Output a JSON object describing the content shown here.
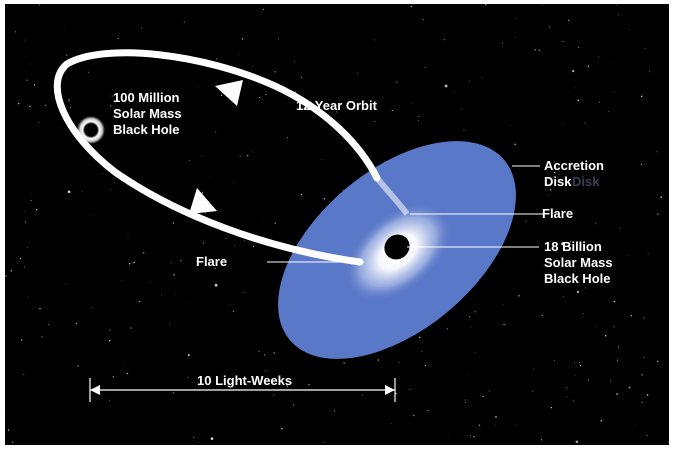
{
  "labels": {
    "small_black_hole": [
      "100 Million",
      "Solar Mass",
      "Black Hole"
    ],
    "orbit": "12-Year Orbit",
    "accretion_disk": [
      "Accretion",
      "Disk"
    ],
    "accretion_disk_ghost": "Disk",
    "flare_upper": "Flare",
    "flare_left": "Flare",
    "big_black_hole": [
      "18 Billion",
      "Solar Mass",
      "Black Hole"
    ],
    "scale": "10 Light-Weeks"
  },
  "colors": {
    "background": "#000000",
    "disk": "#5a78c8",
    "orbit": "#ffffff",
    "text": "#ffffff"
  }
}
